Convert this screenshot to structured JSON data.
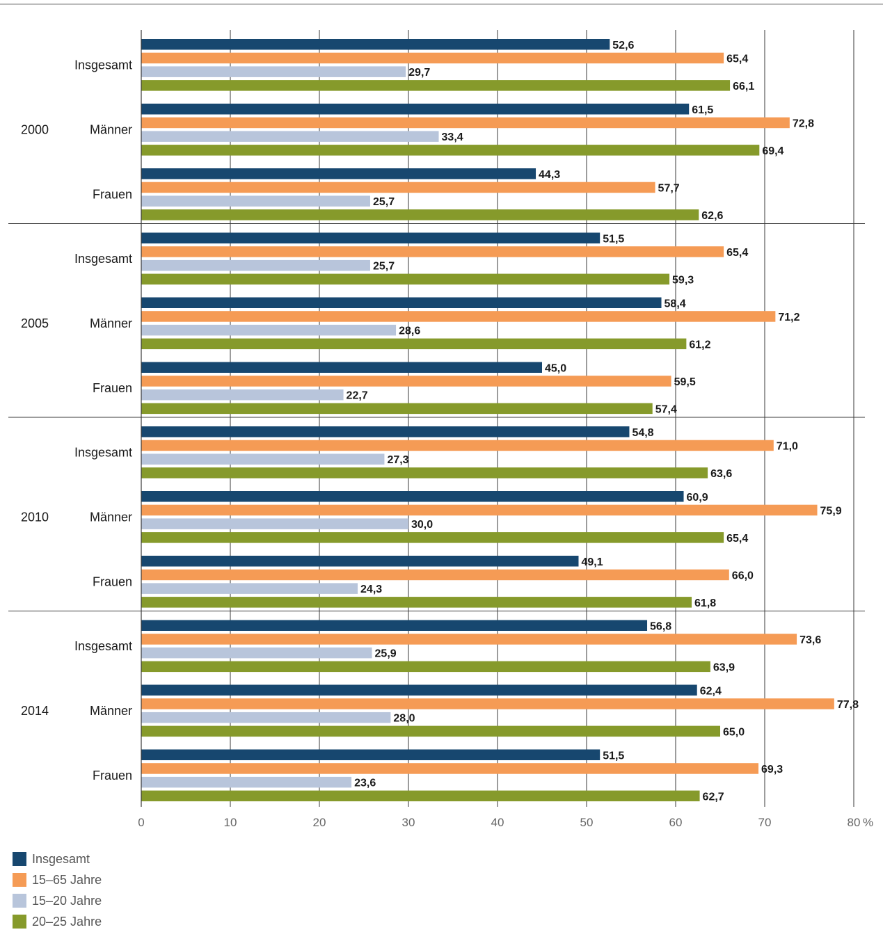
{
  "chart_data": {
    "type": "bar",
    "orientation": "horizontal",
    "groups": [
      "2000",
      "2005",
      "2010",
      "2014"
    ],
    "categories": [
      "Insgesamt",
      "Männer",
      "Frauen"
    ],
    "series": [
      {
        "name": "Insgesamt",
        "color": "#17476f",
        "values": [
          [
            52.6,
            61.5,
            44.3
          ],
          [
            51.5,
            58.4,
            45.0
          ],
          [
            54.8,
            60.9,
            49.1
          ],
          [
            56.8,
            62.4,
            51.5
          ]
        ],
        "labels": [
          [
            "52,6",
            "61,5",
            "44,3"
          ],
          [
            "51,5",
            "58,4",
            "45,0"
          ],
          [
            "54,8",
            "60,9",
            "49,1"
          ],
          [
            "56,8",
            "62,4",
            "51,5"
          ]
        ]
      },
      {
        "name": "15–65 Jahre",
        "color": "#f59b55",
        "values": [
          [
            65.4,
            72.8,
            57.7
          ],
          [
            65.4,
            71.2,
            59.5
          ],
          [
            71.0,
            75.9,
            66.0
          ],
          [
            73.6,
            77.8,
            69.3
          ]
        ],
        "labels": [
          [
            "65,4",
            "72,8",
            "57,7"
          ],
          [
            "65,4",
            "71,2",
            "59,5"
          ],
          [
            "71,0",
            "75,9",
            "66,0"
          ],
          [
            "73,6",
            "77,8",
            "69,3"
          ]
        ]
      },
      {
        "name": "15–20 Jahre",
        "color": "#b8c5db",
        "values": [
          [
            29.7,
            33.4,
            25.7
          ],
          [
            25.7,
            28.6,
            22.7
          ],
          [
            27.3,
            30.0,
            24.3
          ],
          [
            25.9,
            28.0,
            23.6
          ]
        ],
        "labels": [
          [
            "29,7",
            "33,4",
            "25,7"
          ],
          [
            "25,7",
            "28,6",
            "22,7"
          ],
          [
            "27,3",
            "30,0",
            "24,3"
          ],
          [
            "25,9",
            "28,0",
            "23,6"
          ]
        ]
      },
      {
        "name": "20–25 Jahre",
        "color": "#869a2b",
        "values": [
          [
            66.1,
            69.4,
            62.6
          ],
          [
            59.3,
            61.2,
            57.4
          ],
          [
            63.6,
            65.4,
            61.8
          ],
          [
            63.9,
            65.0,
            62.7
          ]
        ],
        "labels": [
          [
            "66,1",
            "69,4",
            "62,6"
          ],
          [
            "59,3",
            "61,2",
            "57,4"
          ],
          [
            "63,6",
            "65,4",
            "61,8"
          ],
          [
            "63,9",
            "65,0",
            "62,7"
          ]
        ]
      }
    ],
    "xticks": [
      0,
      10,
      20,
      30,
      40,
      50,
      60,
      70,
      80
    ],
    "xtick_labels": [
      "0",
      "10",
      "20",
      "30",
      "40",
      "50",
      "60",
      "70",
      "80"
    ],
    "unit": "%",
    "xlim": [
      0,
      80
    ],
    "grid": true,
    "legend_position": "bottom-left"
  }
}
